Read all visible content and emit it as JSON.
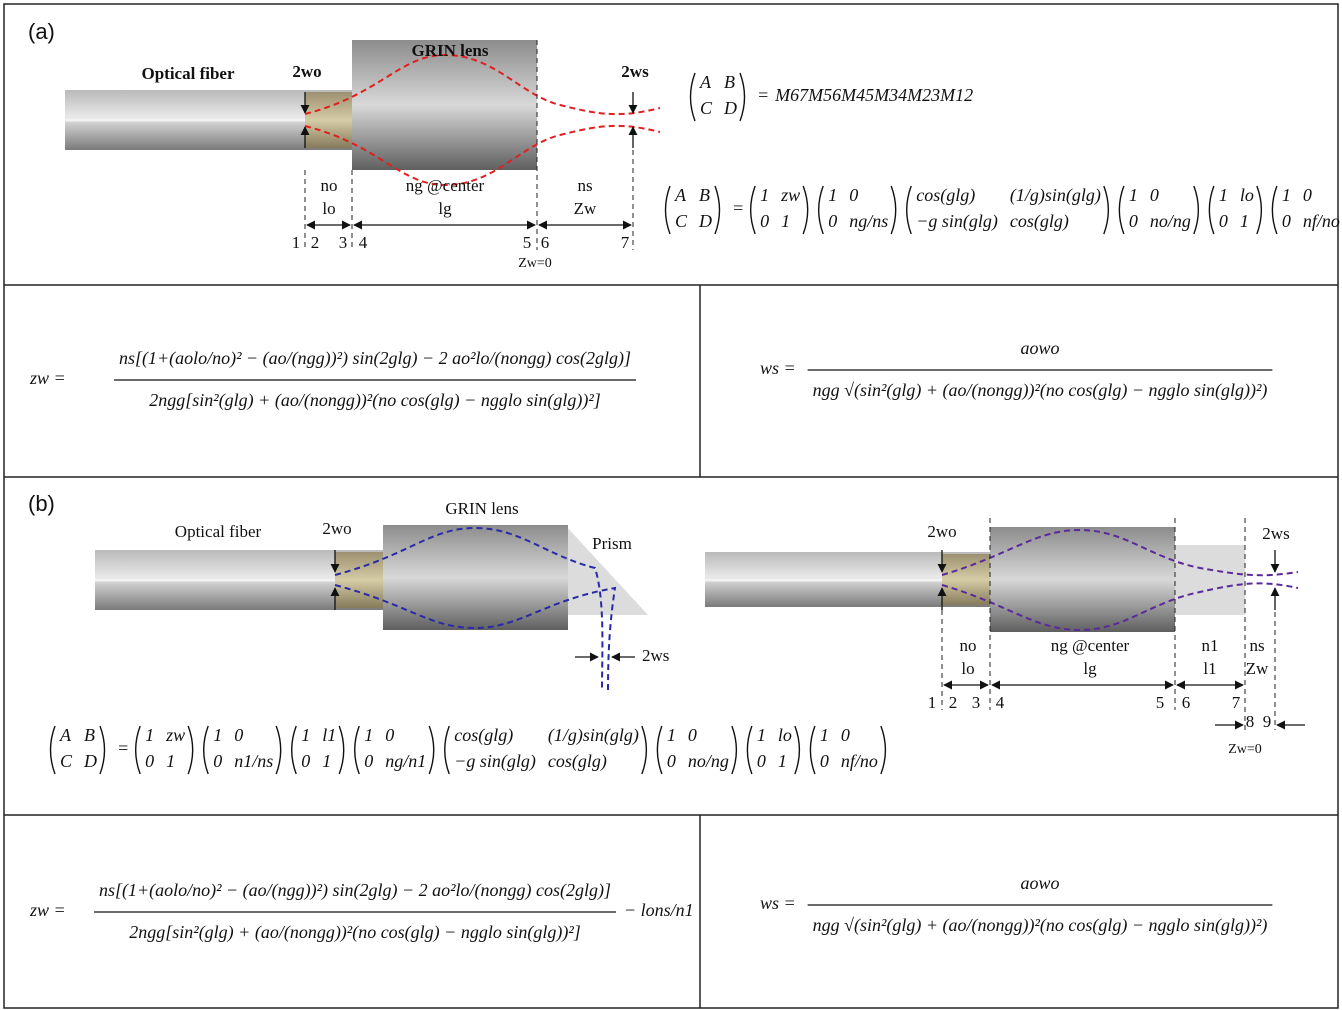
{
  "panel_a": {
    "label": "(a)",
    "diagram": {
      "fiber": "Optical fiber",
      "lens": "GRIN lens",
      "w0": "2wo",
      "ws": "2ws",
      "regions": [
        {
          "n": "no",
          "l": "lo"
        },
        {
          "n": "ng @center",
          "l": "lg"
        },
        {
          "n": "ns",
          "l": "Zw"
        }
      ],
      "planes": [
        "1",
        "2",
        "3",
        "4",
        "5",
        "6",
        "7"
      ],
      "origin": "Zw=0"
    },
    "system_matrix": {
      "lhs": [
        [
          "A",
          "B"
        ],
        [
          "C",
          "D"
        ]
      ],
      "equals": "=",
      "rhs": "M67M56M45M34M23M12"
    },
    "matrix_product": {
      "lhs": [
        [
          "A",
          "B"
        ],
        [
          "C",
          "D"
        ]
      ],
      "equals": "=",
      "factors": [
        [
          [
            "1",
            "zw"
          ],
          [
            "0",
            "1"
          ]
        ],
        [
          [
            "1",
            "0"
          ],
          [
            "0",
            "ng/ns"
          ]
        ],
        [
          [
            "cos(glg)",
            "(1/g)sin(glg)"
          ],
          [
            "−g sin(glg)",
            "cos(glg)"
          ]
        ],
        [
          [
            "1",
            "0"
          ],
          [
            "0",
            "no/ng"
          ]
        ],
        [
          [
            "1",
            "lo"
          ],
          [
            "0",
            "1"
          ]
        ],
        [
          [
            "1",
            "0"
          ],
          [
            "0",
            "nf/no"
          ]
        ]
      ]
    },
    "zw": {
      "lhs": "zw =",
      "numerator": "ns[(1+(aolo/no)² − (ao/(ngg))²) sin(2glg) − 2 ao²lo/(nongg) cos(2glg)]",
      "denominator": "2ngg[sin²(glg) + (ao/(nongg))²(no cos(glg) − ngglo sin(glg))²]"
    },
    "ws": {
      "lhs": "ws =",
      "numerator": "aowo",
      "denominator": "ngg √(sin²(glg) + (ao/(nongg))²(no cos(glg) − ngglo sin(glg))²)"
    }
  },
  "panel_b": {
    "label": "(b)",
    "diagram_left": {
      "fiber": "Optical fiber",
      "lens": "GRIN lens",
      "prism": "Prism",
      "w0": "2wo",
      "ws": "2ws"
    },
    "diagram_right": {
      "w0": "2wo",
      "ws": "2ws",
      "regions": [
        {
          "n": "no",
          "l": "lo"
        },
        {
          "n": "ng @center",
          "l": "lg"
        },
        {
          "n": "n1",
          "l": "l1"
        },
        {
          "n": "ns",
          "l": "Zw"
        }
      ],
      "planes": [
        "1",
        "2",
        "3",
        "4",
        "5",
        "6",
        "7",
        "8",
        "9"
      ],
      "origin": "Zw=0"
    },
    "matrix_product": {
      "lhs": [
        [
          "A",
          "B"
        ],
        [
          "C",
          "D"
        ]
      ],
      "equals": "=",
      "factors": [
        [
          [
            "1",
            "zw"
          ],
          [
            "0",
            "1"
          ]
        ],
        [
          [
            "1",
            "0"
          ],
          [
            "0",
            "n1/ns"
          ]
        ],
        [
          [
            "1",
            "l1"
          ],
          [
            "0",
            "1"
          ]
        ],
        [
          [
            "1",
            "0"
          ],
          [
            "0",
            "ng/n1"
          ]
        ],
        [
          [
            "cos(glg)",
            "(1/g)sin(glg)"
          ],
          [
            "−g sin(glg)",
            "cos(glg)"
          ]
        ],
        [
          [
            "1",
            "0"
          ],
          [
            "0",
            "no/ng"
          ]
        ],
        [
          [
            "1",
            "lo"
          ],
          [
            "0",
            "1"
          ]
        ],
        [
          [
            "1",
            "0"
          ],
          [
            "0",
            "nf/no"
          ]
        ]
      ]
    },
    "zw": {
      "lhs": "zw =",
      "numerator": "ns[(1+(aolo/no)² − (ao/(ngg))²) sin(2glg) − 2 ao²lo/(nongg) cos(2glg)]",
      "denominator": "2ngg[sin²(glg) + (ao/(nongg))²(no cos(glg) − ngglo sin(glg))²]",
      "extra": "− lons/n1"
    },
    "ws": {
      "lhs": "ws =",
      "numerator": "aowo",
      "denominator": "ngg √(sin²(glg) + (ao/(nongg))²(no cos(glg) − ngglo sin(glg))²)"
    }
  }
}
